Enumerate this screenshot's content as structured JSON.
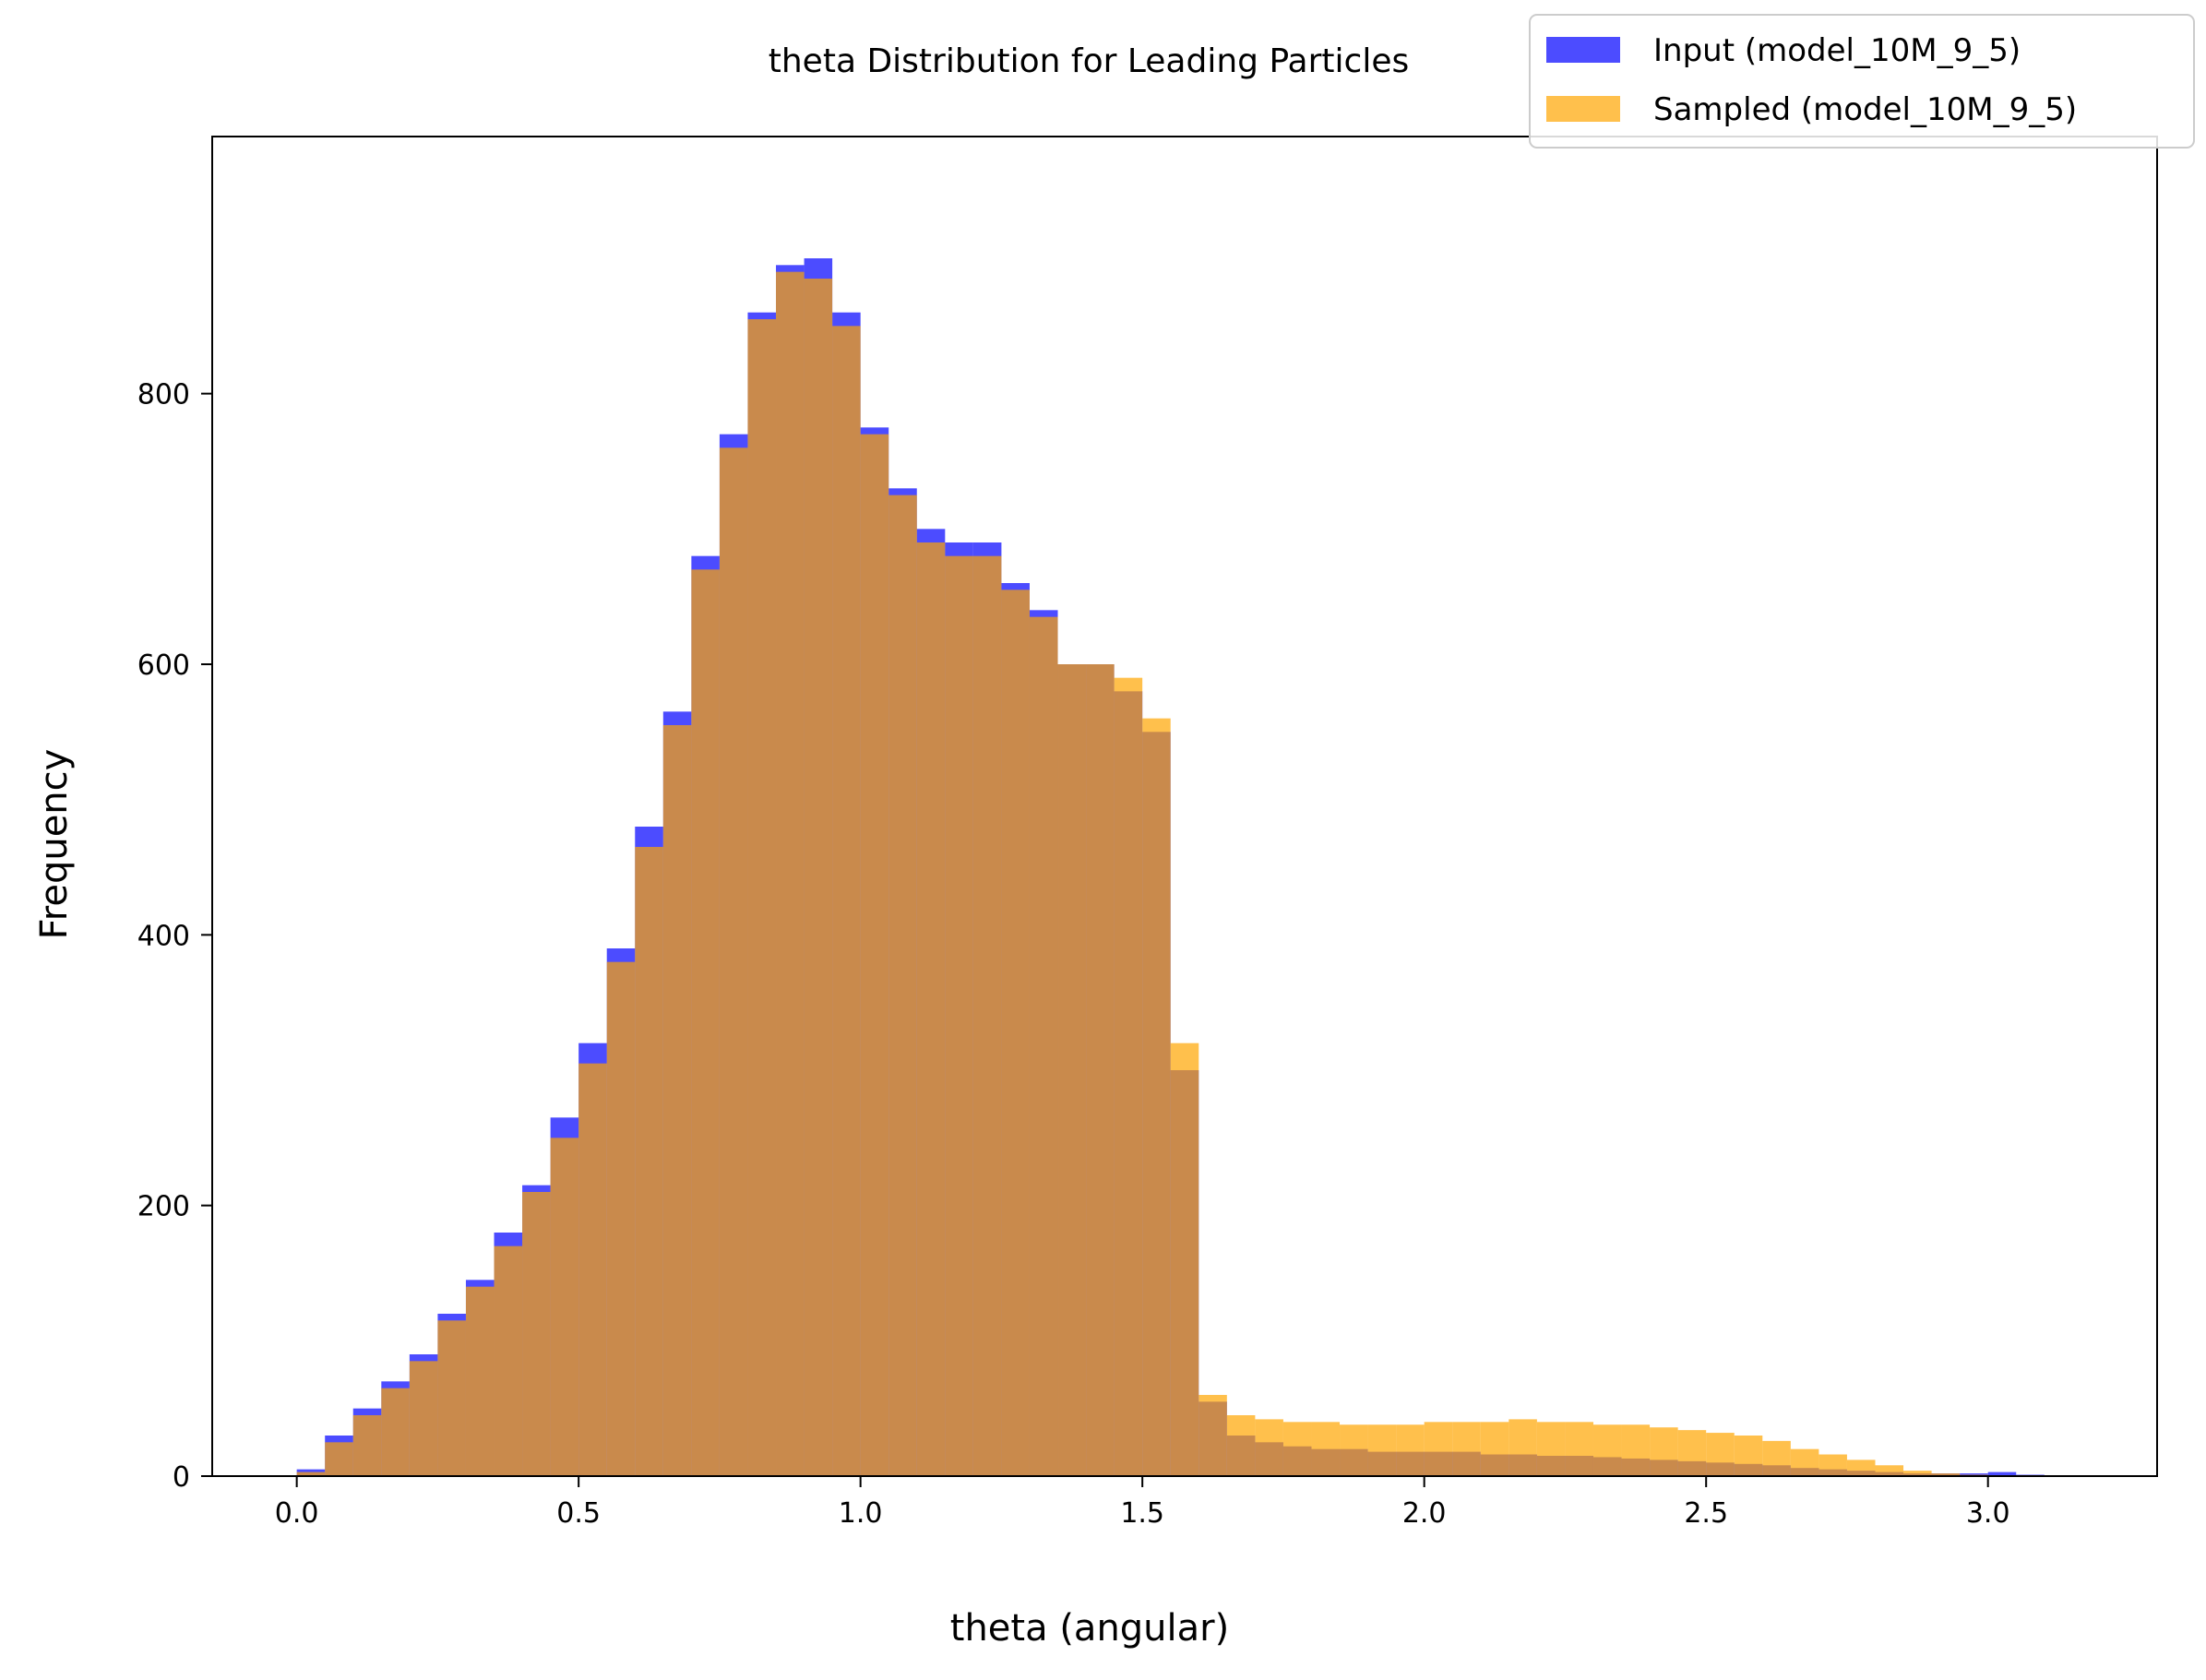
{
  "chart_data": {
    "type": "bar",
    "subtype": "overlaid-histogram",
    "title": "theta Distribution for Leading Particles",
    "xlabel": "theta (angular)",
    "ylabel": "Frequency",
    "xlim": [
      -0.15,
      3.3
    ],
    "ylim": [
      0,
      990
    ],
    "bin_width": 0.05,
    "x_ticks": [
      "0.0",
      "0.5",
      "1.0",
      "1.5",
      "2.0",
      "2.5",
      "3.0"
    ],
    "x_tick_values": [
      0.0,
      0.5,
      1.0,
      1.5,
      2.0,
      2.5,
      3.0
    ],
    "y_ticks": [
      "0",
      "200",
      "400",
      "600",
      "800"
    ],
    "y_tick_values": [
      0,
      200,
      400,
      600,
      800
    ],
    "grid": false,
    "legend_position": "top-right",
    "series": [
      {
        "name": "Input (model_10M_9_5)",
        "color": "#0000ff",
        "opacity": 0.7,
        "bin_centers": [
          0.025,
          0.075,
          0.125,
          0.175,
          0.225,
          0.275,
          0.325,
          0.375,
          0.425,
          0.475,
          0.525,
          0.575,
          0.625,
          0.675,
          0.725,
          0.775,
          0.825,
          0.875,
          0.925,
          0.975,
          1.025,
          1.075,
          1.125,
          1.175,
          1.225,
          1.275,
          1.325,
          1.375,
          1.425,
          1.475,
          1.525,
          1.575,
          1.625,
          1.675,
          1.725,
          1.775,
          1.825,
          1.875,
          1.925,
          1.975,
          2.025,
          2.075,
          2.125,
          2.175,
          2.225,
          2.275,
          2.325,
          2.375,
          2.425,
          2.475,
          2.525,
          2.575,
          2.625,
          2.675,
          2.725,
          2.775,
          2.825,
          2.875,
          2.925,
          2.975,
          3.025,
          3.075
        ],
        "values": [
          5,
          30,
          50,
          70,
          90,
          120,
          145,
          180,
          215,
          265,
          320,
          390,
          480,
          565,
          680,
          770,
          860,
          895,
          900,
          860,
          775,
          730,
          700,
          690,
          690,
          660,
          640,
          600,
          600,
          580,
          550,
          300,
          55,
          30,
          25,
          22,
          20,
          20,
          18,
          18,
          18,
          18,
          16,
          16,
          15,
          15,
          14,
          13,
          12,
          11,
          10,
          9,
          8,
          6,
          5,
          4,
          3,
          2,
          2,
          2,
          3,
          1
        ]
      },
      {
        "name": "Sampled (model_10M_9_5)",
        "color": "#ffa500",
        "opacity": 0.7,
        "bin_centers": [
          0.025,
          0.075,
          0.125,
          0.175,
          0.225,
          0.275,
          0.325,
          0.375,
          0.425,
          0.475,
          0.525,
          0.575,
          0.625,
          0.675,
          0.725,
          0.775,
          0.825,
          0.875,
          0.925,
          0.975,
          1.025,
          1.075,
          1.125,
          1.175,
          1.225,
          1.275,
          1.325,
          1.375,
          1.425,
          1.475,
          1.525,
          1.575,
          1.625,
          1.675,
          1.725,
          1.775,
          1.825,
          1.875,
          1.925,
          1.975,
          2.025,
          2.075,
          2.125,
          2.175,
          2.225,
          2.275,
          2.325,
          2.375,
          2.425,
          2.475,
          2.525,
          2.575,
          2.625,
          2.675,
          2.725,
          2.775,
          2.825,
          2.875,
          2.925,
          2.975,
          3.025,
          3.075
        ],
        "values": [
          3,
          25,
          45,
          65,
          85,
          115,
          140,
          170,
          210,
          250,
          305,
          380,
          465,
          555,
          670,
          760,
          855,
          890,
          885,
          850,
          770,
          725,
          690,
          680,
          680,
          655,
          635,
          600,
          600,
          590,
          560,
          320,
          60,
          45,
          42,
          40,
          40,
          38,
          38,
          38,
          40,
          40,
          40,
          42,
          40,
          40,
          38,
          38,
          36,
          34,
          32,
          30,
          26,
          20,
          16,
          12,
          8,
          4,
          2,
          1,
          0,
          0
        ]
      }
    ]
  }
}
